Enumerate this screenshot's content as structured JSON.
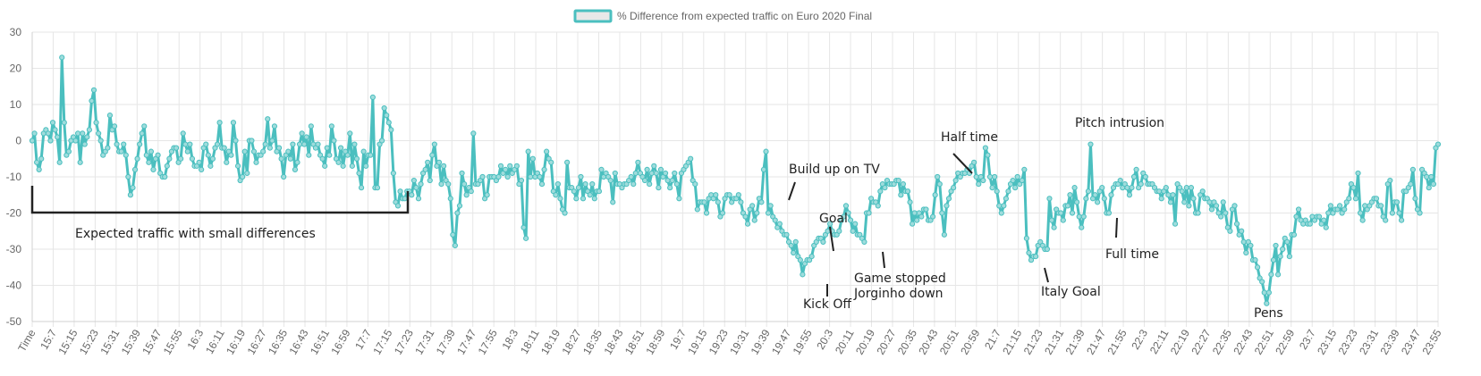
{
  "chart_data": {
    "type": "line",
    "legend_position": "top-center",
    "grid": true,
    "ylim": [
      -50,
      30
    ],
    "yticks": [
      30,
      20,
      10,
      0,
      -10,
      -20,
      -30,
      -40,
      -50
    ],
    "series": [
      {
        "name": "% Difference from expected traffic on Euro 2020 Final",
        "color": "#4bbfbf",
        "values": [
          0,
          2,
          -6,
          -8,
          -5,
          2,
          3,
          2,
          0,
          5,
          3,
          1,
          -6,
          23,
          5,
          -4,
          -3,
          0,
          1,
          0,
          2,
          -6,
          2,
          -1,
          1,
          3,
          11,
          14,
          5,
          2,
          0,
          -4,
          -3,
          -2,
          7,
          3,
          4,
          -1,
          -3,
          -3,
          -1,
          -4,
          -10,
          -15,
          -13,
          -8,
          -5,
          -1,
          2,
          4,
          -4,
          -6,
          -3,
          -8,
          -5,
          -4,
          -9,
          -10,
          -10,
          -7,
          -5,
          -3,
          -2,
          -2,
          -6,
          -5,
          2,
          -1,
          -3,
          -1,
          -5,
          -7,
          -7,
          -6,
          -8,
          -2,
          -1,
          -4,
          -7,
          -5,
          -2,
          -1,
          5,
          -2,
          -2,
          -6,
          -3,
          -4,
          5,
          0,
          -7,
          -11,
          -10,
          -3,
          -9,
          0,
          0,
          -3,
          -6,
          -4,
          -4,
          -3,
          -1,
          6,
          -2,
          0,
          4,
          -3,
          -2,
          -5,
          -10,
          -4,
          -3,
          -5,
          -1,
          -8,
          -6,
          -1,
          2,
          -1,
          1,
          -4,
          4,
          -1,
          -2,
          -1,
          -4,
          -5,
          -7,
          -2,
          -4,
          4,
          0,
          -5,
          -6,
          -2,
          -7,
          -3,
          -4,
          2,
          -7,
          -1,
          -5,
          -9,
          -13,
          -3,
          -7,
          -4,
          -4,
          12,
          -13,
          -13,
          -1,
          0,
          9,
          7,
          5,
          3,
          -9,
          -17,
          -18,
          -14,
          -16,
          -16,
          -14,
          -14,
          -15,
          -11,
          -13,
          -16,
          -12,
          -9,
          -8,
          -6,
          -11,
          -4,
          -1,
          -7,
          -6,
          -12,
          -7,
          -11,
          -12,
          -16,
          -26,
          -29,
          -20,
          -18,
          -9,
          -12,
          -15,
          -13,
          -14,
          2,
          -12,
          -12,
          -11,
          -10,
          -16,
          -15,
          -10,
          -10,
          -10,
          -11,
          -10,
          -7,
          -9,
          -8,
          -10,
          -7,
          -9,
          -8,
          -7,
          -12,
          -11,
          -24,
          -27,
          -3,
          -10,
          -5,
          -10,
          -9,
          -10,
          -12,
          -8,
          -3,
          -5,
          -6,
          -14,
          -15,
          -12,
          -16,
          -19,
          -20,
          -6,
          -13,
          -13,
          -14,
          -16,
          -13,
          -10,
          -16,
          -12,
          -14,
          -15,
          -12,
          -16,
          -14,
          -14,
          -8,
          -10,
          -9,
          -10,
          -11,
          -17,
          -9,
          -12,
          -12,
          -13,
          -12,
          -12,
          -11,
          -10,
          -12,
          -9,
          -6,
          -9,
          -10,
          -11,
          -8,
          -12,
          -9,
          -7,
          -9,
          -13,
          -8,
          -10,
          -9,
          -11,
          -13,
          -11,
          -9,
          -12,
          -16,
          -9,
          -8,
          -7,
          -6,
          -5,
          -11,
          -12,
          -19,
          -17,
          -17,
          -17,
          -20,
          -16,
          -15,
          -16,
          -15,
          -17,
          -21,
          -20,
          -16,
          -15,
          -15,
          -17,
          -16,
          -16,
          -15,
          -17,
          -20,
          -21,
          -23,
          -19,
          -18,
          -22,
          -20,
          -16,
          -17,
          -8,
          -3,
          -20,
          -18,
          -21,
          -22,
          -24,
          -23,
          -25,
          -26,
          -26,
          -28,
          -29,
          -31,
          -28,
          -32,
          -33,
          -37,
          -34,
          -33,
          -33,
          -32,
          -29,
          -28,
          -27,
          -27,
          -28,
          -26,
          -25,
          -23,
          -25,
          -26,
          -26,
          -25,
          -22,
          -21,
          -18,
          -20,
          -22,
          -25,
          -23,
          -26,
          -26,
          -27,
          -28,
          -20,
          -20,
          -16,
          -17,
          -17,
          -18,
          -14,
          -12,
          -13,
          -11,
          -12,
          -12,
          -12,
          -11,
          -11,
          -15,
          -12,
          -14,
          -14,
          -17,
          -23,
          -20,
          -22,
          -20,
          -21,
          -19,
          -19,
          -22,
          -22,
          -21,
          -15,
          -10,
          -12,
          -20,
          -26,
          -18,
          -16,
          -14,
          -13,
          -11,
          -9,
          -10,
          -9,
          -9,
          -8,
          -9,
          -7,
          -6,
          -10,
          -12,
          -10,
          -11,
          -2,
          -4,
          -10,
          -13,
          -10,
          -14,
          -18,
          -20,
          -18,
          -16,
          -14,
          -12,
          -11,
          -13,
          -10,
          -12,
          -11,
          -8,
          -27,
          -31,
          -33,
          -32,
          -32,
          -29,
          -28,
          -29,
          -30,
          -30,
          -16,
          -22,
          -24,
          -19,
          -20,
          -20,
          -22,
          -18,
          -18,
          -15,
          -20,
          -13,
          -17,
          -21,
          -24,
          -21,
          -16,
          -14,
          -1,
          -16,
          -15,
          -17,
          -14,
          -13,
          -16,
          -20,
          -20,
          -15,
          -13,
          -12,
          -12,
          -11,
          -13,
          -12,
          -13,
          -15,
          -13,
          -10,
          -8,
          -13,
          -12,
          -9,
          -10,
          -12,
          -12,
          -12,
          -13,
          -14,
          -14,
          -16,
          -14,
          -13,
          -15,
          -17,
          -15,
          -23,
          -12,
          -13,
          -14,
          -17,
          -13,
          -18,
          -13,
          -16,
          -20,
          -20,
          -15,
          -14,
          -16,
          -16,
          -17,
          -19,
          -17,
          -18,
          -20,
          -21,
          -17,
          -20,
          -24,
          -25,
          -19,
          -18,
          -23,
          -26,
          -25,
          -28,
          -31,
          -28,
          -29,
          -33,
          -33,
          -35,
          -38,
          -39,
          -42,
          -45,
          -42,
          -37,
          -33,
          -29,
          -37,
          -32,
          -30,
          -27,
          -28,
          -32,
          -26,
          -26,
          -21,
          -19,
          -22,
          -23,
          -22,
          -23,
          -23,
          -21,
          -22,
          -21,
          -21,
          -23,
          -22,
          -24,
          -20,
          -18,
          -20,
          -19,
          -19,
          -18,
          -20,
          -19,
          -17,
          -16,
          -12,
          -13,
          -16,
          -9,
          -20,
          -22,
          -18,
          -19,
          -18,
          -17,
          -16,
          -16,
          -18,
          -18,
          -21,
          -22,
          -12,
          -11,
          -20,
          -17,
          -17,
          -20,
          -22,
          -14,
          -14,
          -13,
          -12,
          -8,
          -16,
          -19,
          -20,
          -8,
          -9,
          -10,
          -13,
          -10,
          -12,
          -2,
          -1
        ]
      }
    ],
    "x_tick_labels": [
      "Time",
      "15:7",
      "15:15",
      "15:23",
      "15:31",
      "15:39",
      "15:47",
      "15:55",
      "16:3",
      "16:11",
      "16:19",
      "16:27",
      "16:35",
      "16:43",
      "16:51",
      "16:59",
      "17:7",
      "17:15",
      "17:23",
      "17:31",
      "17:39",
      "17:47",
      "17:55",
      "18:3",
      "18:11",
      "18:19",
      "18:27",
      "18:35",
      "18:43",
      "18:51",
      "18:59",
      "19:7",
      "19:15",
      "19:23",
      "19:31",
      "19:39",
      "19:47",
      "19:55",
      "20:3",
      "20:11",
      "20:19",
      "20:27",
      "20:35",
      "20:43",
      "20:51",
      "20:59",
      "21:7",
      "21:15",
      "21:23",
      "21:31",
      "21:39",
      "21:47",
      "21:55",
      "22:3",
      "22:11",
      "22:19",
      "22:27",
      "22:35",
      "22:43",
      "22:51",
      "22:59",
      "23:7",
      "23:15",
      "23:23",
      "23:31",
      "23:39",
      "23:47",
      "23:55"
    ],
    "annotations": {
      "expected": "Expected traffic with small differences",
      "build_up": "Build up on TV",
      "goal": "Goal",
      "kick_off": "Kick Off",
      "game_stopped_1": "Game stopped",
      "game_stopped_2": "Jorginho down",
      "half_time": "Half time",
      "italy_goal": "Italy Goal",
      "pitch_intrusion": "Pitch intrusion",
      "full_time": "Full time",
      "pens": "Pens"
    },
    "colors": {
      "line": "#4bbfbf",
      "point_fill": "#9fdcdc",
      "legend_box_fill": "#e8e8e8",
      "grid": "#e6e6e6",
      "annotation": "#222222"
    }
  }
}
